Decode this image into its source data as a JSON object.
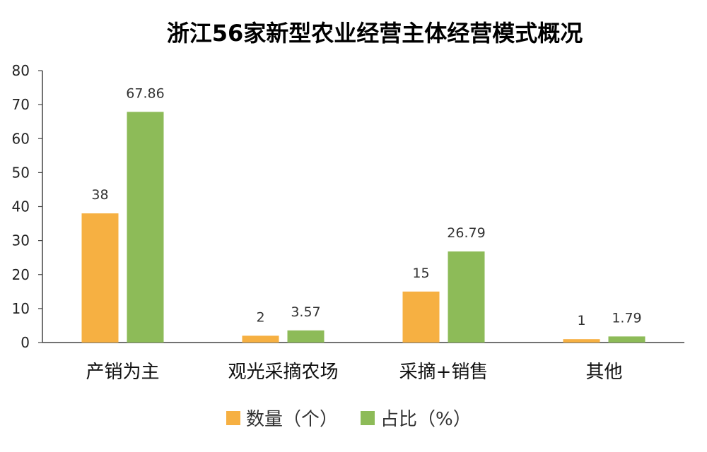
{
  "chart_data": {
    "type": "bar",
    "title": "浙江56家新型农业经营主体经营模式概况",
    "categories": [
      "产销为主",
      "观光采摘农场",
      "采摘+销售",
      "其他"
    ],
    "series": [
      {
        "name": "数量（个）",
        "values": [
          38,
          2,
          15,
          1
        ],
        "labels": [
          "38",
          "2",
          "15",
          "1"
        ],
        "color": "#F6B042"
      },
      {
        "name": "占比（%）",
        "values": [
          67.86,
          3.57,
          26.79,
          1.79
        ],
        "labels": [
          "67.86",
          "3.57",
          "26.79",
          "1.79"
        ],
        "color": "#8DBB58"
      }
    ],
    "y_ticks": [
      "0",
      "10",
      "20",
      "30",
      "40",
      "50",
      "60",
      "70",
      "80"
    ],
    "ylim": [
      0,
      80
    ],
    "grid": false,
    "legend_position": "bottom"
  }
}
